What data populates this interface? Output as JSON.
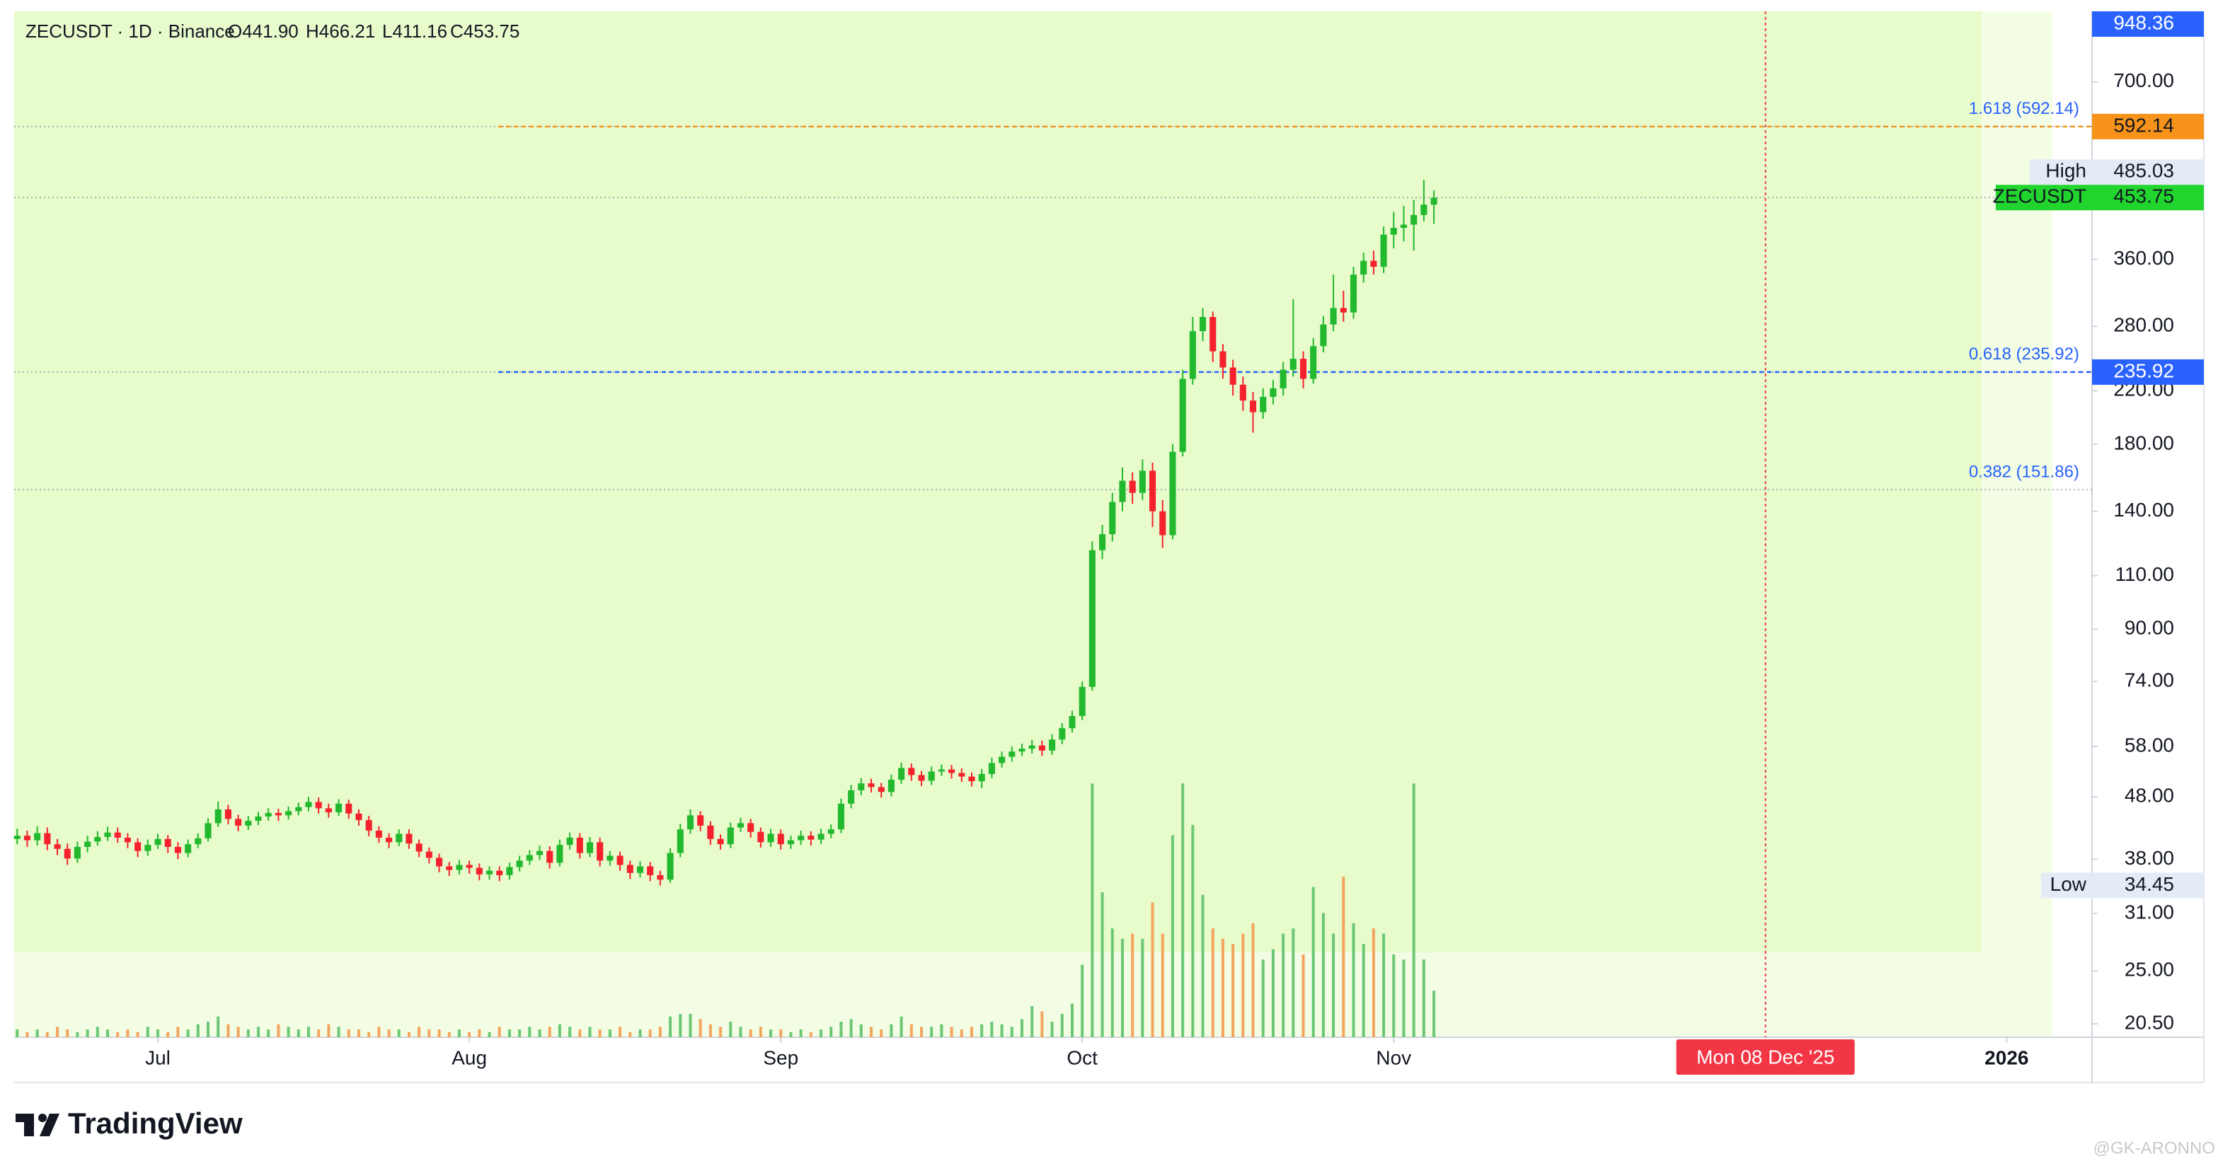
{
  "chart_data": {
    "type": "candlestick",
    "title": "ZECUSDT · 1D · Binance",
    "ohlc_labels": [
      "O441.90",
      "H466.21",
      "L411.16",
      "C453.75"
    ],
    "log_scale": true,
    "ylim": [
      19.5,
      912
    ],
    "yticks": [
      {
        "value": 20.5,
        "label": "20.50"
      },
      {
        "value": 25,
        "label": "25.00"
      },
      {
        "value": 31,
        "label": "31.00"
      },
      {
        "value": 38,
        "label": "38.00"
      },
      {
        "value": 48,
        "label": "48.00"
      },
      {
        "value": 58,
        "label": "58.00"
      },
      {
        "value": 74,
        "label": "74.00"
      },
      {
        "value": 90,
        "label": "90.00"
      },
      {
        "value": 110,
        "label": "110.00"
      },
      {
        "value": 140,
        "label": "140.00"
      },
      {
        "value": 180,
        "label": "180.00"
      },
      {
        "value": 220,
        "label": "220.00"
      },
      {
        "value": 280,
        "label": "280.00"
      },
      {
        "value": 360,
        "label": "360.00"
      },
      {
        "value": 700,
        "label": "700.00"
      }
    ],
    "xlim": [
      -0.3,
      206.5
    ],
    "xticks": [
      {
        "value": 14,
        "label": "Jul"
      },
      {
        "value": 45,
        "label": "Aug"
      },
      {
        "value": 76,
        "label": "Sep"
      },
      {
        "value": 106,
        "label": "Oct"
      },
      {
        "value": 137,
        "label": "Nov"
      },
      {
        "value": 198,
        "label": "2026"
      }
    ],
    "cursor": {
      "value": 174,
      "label": "Mon 08 Dec '25",
      "color": "#f23645"
    },
    "up_color": "#22b92e",
    "down_color": "#f5222d",
    "volume_up_color": "#6cc775",
    "volume_down_color": "#f4a45e",
    "vlim": [
      0,
      100
    ],
    "open": [
      41.0,
      41.5,
      40.8,
      41.9,
      40.2,
      39.5,
      38.1,
      39.8,
      40.6,
      41.3,
      42.0,
      41.2,
      40.5,
      39.2,
      40.1,
      41.0,
      39.8,
      38.9,
      40.2,
      41.1,
      43.5,
      45.8,
      44.2,
      43.1,
      43.9,
      44.6,
      45.2,
      44.8,
      45.5,
      46.2,
      47.1,
      46.0,
      45.3,
      46.8,
      45.1,
      44.0,
      42.3,
      41.2,
      40.5,
      41.8,
      40.3,
      39.1,
      38.2,
      37.0,
      36.5,
      37.2,
      36.8,
      35.9,
      36.4,
      35.8,
      36.9,
      37.8,
      38.6,
      39.2,
      37.5,
      40.1,
      41.2,
      38.9,
      40.5,
      37.8,
      38.5,
      37.2,
      36.1,
      37.0,
      35.8,
      35.2,
      38.9,
      42.5,
      44.8,
      43.1,
      41.0,
      40.2,
      42.8,
      43.5,
      42.1,
      40.5,
      41.8,
      40.2,
      40.8,
      41.5,
      40.9,
      41.8,
      42.5,
      46.8,
      49.2,
      50.5,
      49.8,
      48.9,
      51.2,
      53.5,
      52.1,
      51.0,
      52.8,
      53.2,
      52.5,
      51.8,
      50.9,
      52.3,
      54.5,
      55.8,
      56.9,
      57.5,
      58.2,
      57.1,
      59.5,
      62.1,
      65.0,
      72.5,
      121.0,
      128.5,
      145.0,
      157.0,
      150.0,
      163.0,
      140.0,
      128.0,
      175.0,
      230.0,
      275.0,
      290.0,
      255.0,
      240.0,
      225.0,
      212.0,
      203.0,
      215.0,
      222.0,
      238.0,
      248.0,
      230.0,
      260.0,
      282.0,
      300.0,
      295.0,
      340.0,
      358.0,
      350.0,
      395.0,
      405.0,
      410.0,
      425.0,
      441.9
    ],
    "high": [
      42.6,
      42.3,
      43.0,
      42.8,
      41.0,
      40.3,
      40.6,
      41.5,
      42.2,
      42.9,
      42.8,
      41.9,
      41.1,
      40.9,
      41.8,
      41.6,
      40.5,
      40.9,
      41.9,
      44.3,
      47.2,
      46.6,
      44.9,
      44.7,
      45.4,
      46.0,
      45.9,
      46.3,
      47.0,
      48.0,
      47.9,
      46.8,
      47.6,
      47.5,
      45.8,
      44.7,
      43.0,
      41.9,
      42.5,
      42.5,
      40.9,
      39.7,
      38.8,
      37.6,
      37.9,
      37.8,
      37.4,
      37.0,
      37.0,
      37.5,
      38.5,
      39.3,
      40.0,
      39.9,
      40.9,
      42.0,
      41.9,
      41.3,
      41.2,
      39.2,
      39.1,
      37.8,
      37.7,
      37.6,
      36.4,
      39.6,
      43.4,
      45.8,
      45.5,
      43.8,
      41.7,
      43.6,
      44.4,
      44.2,
      42.8,
      42.6,
      42.5,
      41.5,
      42.3,
      42.2,
      42.6,
      43.3,
      47.7,
      50.2,
      51.5,
      51.4,
      50.6,
      52.2,
      54.6,
      54.4,
      52.9,
      53.8,
      54.2,
      54.1,
      53.4,
      52.6,
      53.3,
      55.6,
      56.9,
      58.0,
      58.6,
      59.4,
      59.3,
      60.7,
      63.3,
      66.3,
      74.0,
      125.0,
      133.0,
      150.0,
      165.0,
      162.0,
      170.0,
      168.0,
      146.0,
      180.0,
      238.0,
      290.0,
      300.0,
      296.0,
      262.0,
      247.0,
      232.0,
      219.0,
      222.0,
      229.0,
      245.0,
      310.0,
      255.0,
      268.0,
      291.0,
      340.0,
      320.0,
      350.0,
      369.0,
      372.0,
      407.0,
      430.0,
      440.0,
      450.0,
      485.03,
      466.21
    ],
    "low": [
      40.2,
      39.8,
      40.0,
      39.3,
      38.6,
      37.2,
      37.5,
      39.0,
      40.0,
      40.7,
      40.4,
      39.6,
      38.3,
      38.5,
      39.5,
      38.9,
      38.0,
      38.3,
      39.6,
      40.6,
      42.9,
      43.3,
      42.2,
      42.4,
      43.2,
      43.9,
      43.9,
      44.1,
      44.8,
      45.5,
      45.1,
      44.4,
      44.7,
      44.2,
      43.1,
      41.4,
      40.4,
      39.6,
      39.9,
      39.5,
      38.3,
      37.4,
      36.2,
      35.7,
      35.9,
      36.0,
      35.1,
      35.2,
      35.0,
      35.2,
      36.3,
      37.2,
      37.9,
      36.7,
      37.0,
      39.4,
      38.1,
      38.3,
      37.0,
      37.1,
      36.4,
      35.3,
      35.5,
      35.0,
      34.45,
      34.8,
      38.3,
      41.8,
      42.2,
      40.1,
      39.4,
      39.6,
      42.1,
      41.2,
      39.7,
      39.8,
      39.4,
      39.5,
      40.1,
      40.0,
      40.2,
      41.1,
      41.9,
      46.0,
      48.3,
      48.8,
      47.9,
      48.1,
      50.4,
      51.0,
      50.0,
      50.2,
      51.9,
      51.4,
      50.8,
      49.9,
      49.6,
      51.5,
      53.6,
      54.8,
      55.9,
      56.5,
      56.0,
      56.2,
      58.5,
      61.1,
      64.0,
      71.5,
      117.0,
      125.0,
      140.0,
      144.0,
      146.0,
      132.0,
      122.0,
      126.0,
      172.0,
      225.0,
      265.0,
      245.0,
      230.0,
      216.0,
      204.0,
      188.0,
      198.0,
      209.0,
      216.0,
      232.0,
      222.0,
      226.0,
      254.0,
      275.0,
      285.0,
      288.0,
      330.0,
      340.0,
      342.0,
      375.0,
      385.0,
      372.0,
      415.0,
      411.16
    ],
    "close": [
      41.5,
      40.8,
      41.9,
      40.2,
      39.5,
      38.1,
      39.8,
      40.6,
      41.3,
      42.0,
      41.2,
      40.5,
      39.2,
      40.1,
      41.0,
      39.8,
      38.9,
      40.2,
      41.1,
      43.5,
      45.8,
      44.2,
      43.1,
      43.9,
      44.6,
      45.2,
      44.8,
      45.5,
      46.2,
      47.1,
      46.0,
      45.3,
      46.8,
      45.1,
      44.0,
      42.3,
      41.2,
      40.5,
      41.8,
      40.3,
      39.1,
      38.2,
      37.0,
      36.5,
      37.2,
      36.8,
      35.9,
      36.4,
      35.8,
      36.9,
      37.8,
      38.6,
      39.2,
      37.5,
      40.1,
      41.2,
      38.9,
      40.5,
      37.8,
      38.5,
      37.2,
      36.1,
      37.0,
      35.8,
      35.2,
      38.9,
      42.5,
      44.8,
      43.1,
      41.0,
      40.2,
      42.8,
      43.5,
      42.1,
      40.5,
      41.8,
      40.2,
      40.8,
      41.5,
      40.9,
      41.8,
      42.5,
      46.8,
      49.2,
      50.5,
      49.8,
      48.9,
      51.2,
      53.5,
      52.1,
      51.0,
      52.8,
      53.2,
      52.5,
      51.8,
      50.9,
      52.3,
      54.5,
      55.8,
      56.9,
      57.5,
      58.2,
      57.1,
      59.5,
      62.1,
      65.0,
      72.5,
      121.0,
      128.5,
      145.0,
      157.0,
      150.0,
      163.0,
      140.0,
      128.0,
      175.0,
      230.0,
      275.0,
      290.0,
      255.0,
      240.0,
      225.0,
      212.0,
      203.0,
      215.0,
      222.0,
      238.0,
      248.0,
      230.0,
      260.0,
      282.0,
      300.0,
      295.0,
      340.0,
      358.0,
      350.0,
      395.0,
      405.0,
      410.0,
      425.0,
      441.9,
      453.75
    ],
    "volume": [
      3,
      2,
      3,
      2,
      4,
      3,
      2,
      3,
      4,
      3,
      2,
      3,
      2,
      4,
      3,
      2,
      4,
      3,
      5,
      6,
      8,
      5,
      4,
      3,
      4,
      3,
      5,
      4,
      3,
      4,
      3,
      5,
      4,
      3,
      3,
      2,
      4,
      3,
      3,
      2,
      4,
      3,
      3,
      2,
      3,
      2,
      3,
      2,
      4,
      3,
      3,
      4,
      3,
      4,
      5,
      4,
      3,
      4,
      3,
      3,
      4,
      2,
      3,
      3,
      4,
      8,
      9,
      9,
      7,
      5,
      4,
      6,
      4,
      3,
      4,
      3,
      3,
      2,
      3,
      2,
      3,
      4,
      6,
      7,
      5,
      4,
      3,
      5,
      8,
      5,
      4,
      4,
      5,
      4,
      3,
      4,
      5,
      6,
      5,
      4,
      7,
      12,
      10,
      6,
      9,
      13,
      28,
      98,
      56,
      42,
      38,
      40,
      38,
      52,
      40,
      78,
      98,
      82,
      55,
      42,
      38,
      36,
      40,
      44,
      30,
      34,
      40,
      42,
      32,
      58,
      48,
      40,
      62,
      44,
      36,
      42,
      40,
      32,
      30,
      98,
      30,
      18
    ],
    "fib_text_color": "#2962ff",
    "fib_levels": [
      {
        "label": "1.618 (592.14)",
        "value": 592.14,
        "color": "#f7931a"
      },
      {
        "label": "0.618 (235.92)",
        "value": 235.92,
        "color": "#2962ff"
      },
      {
        "label": "0.382 (151.86)",
        "value": 151.86
      }
    ],
    "axis_labels": [
      {
        "value": 948.36,
        "color": "#2962ff",
        "text_color": "#ffffff"
      },
      {
        "value": 592.14,
        "color": "#f7931a",
        "text_color": "#131722"
      },
      {
        "name": "High",
        "value": 485.03,
        "color": "#e4ebf7",
        "text_color": "#131722"
      },
      {
        "name": "ZECUSDT",
        "value": 453.75,
        "color": "#22d52e",
        "text_color": "#131722",
        "price_line": true
      },
      {
        "value": 235.92,
        "color": "#2962ff",
        "text_color": "#ffffff"
      },
      {
        "name": "Low",
        "value": 34.45,
        "color": "#e4ebf7",
        "text_color": "#131722"
      }
    ]
  },
  "brand": "TradingView",
  "watermark": "@GK-ARONNO"
}
